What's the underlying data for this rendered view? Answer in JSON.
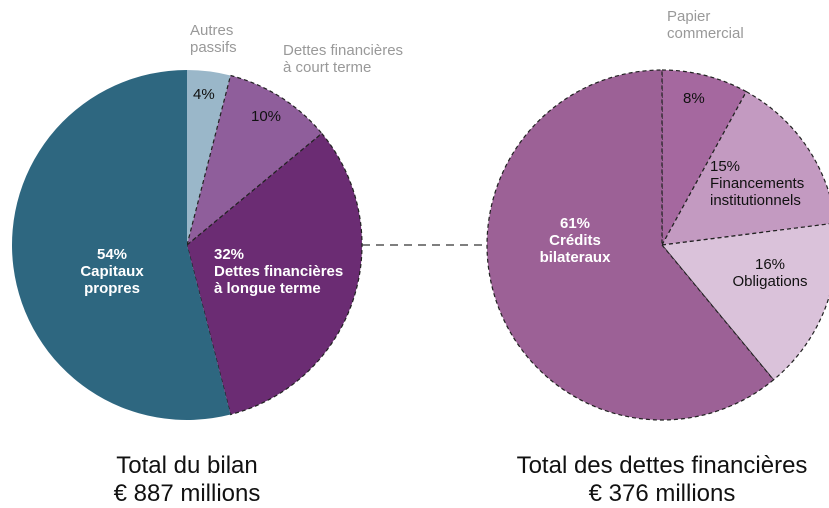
{
  "chart_data": [
    {
      "type": "pie",
      "categories": [
        "Autres\npassifs",
        "Dettes financières\nà court terme",
        "Dettes financières\nà longue terme",
        "Capitaux\npropres"
      ],
      "values": [
        4,
        10,
        32,
        54
      ],
      "value_labels": [
        "4%",
        "10%",
        "32%",
        "54%"
      ],
      "colors": [
        "#9ab7c9",
        "#8f5e9b",
        "#6b2c73",
        "#2e6780"
      ],
      "dashed": [
        false,
        true,
        true,
        false
      ],
      "caption": [
        "Total du bilan",
        "€ 887 millions"
      ]
    },
    {
      "type": "pie",
      "categories": [
        "Papier\ncommercial",
        "Financements\ninstitutionnels",
        "Obligations",
        "Crédits\nbilateraux"
      ],
      "values": [
        8,
        15,
        16,
        61
      ],
      "value_labels": [
        "8%",
        "15%",
        "16%",
        "61%"
      ],
      "colors": [
        "#a5689f",
        "#c39ac1",
        "#dac2da",
        "#9c6196"
      ],
      "dashed": [
        true,
        true,
        true,
        true
      ],
      "caption": [
        "Total des dettes financières",
        "€ 376 millions"
      ]
    }
  ]
}
